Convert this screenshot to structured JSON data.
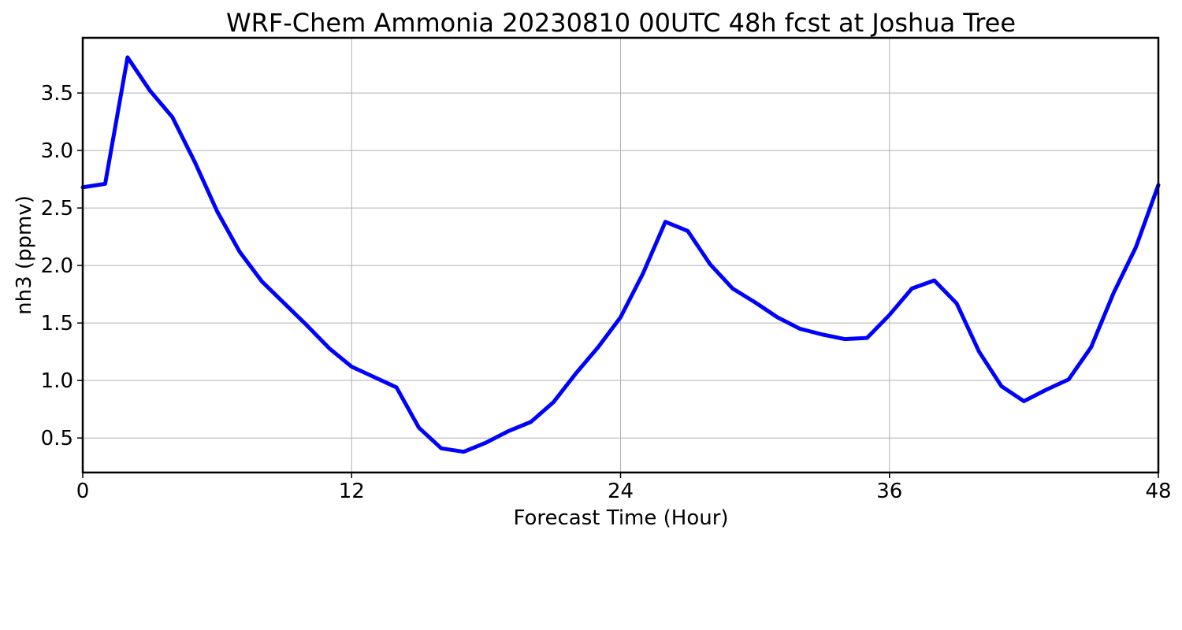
{
  "chart_data": {
    "type": "line",
    "title": "WRF-Chem Ammonia  20230810 00UTC 48h fcst at Joshua Tree",
    "xlabel": "Forecast Time (Hour)",
    "ylabel": "nh3  (ppmv)",
    "xlim": [
      0,
      48
    ],
    "ylim": [
      0.2,
      3.98
    ],
    "x_ticks": [
      0,
      12,
      24,
      36,
      48
    ],
    "x_tick_labels": [
      "0",
      "12",
      "24",
      "36",
      "48"
    ],
    "y_ticks": [
      0.5,
      1.0,
      1.5,
      2.0,
      2.5,
      3.0,
      3.5
    ],
    "y_tick_labels": [
      "0.5",
      "1.0",
      "1.5",
      "2.0",
      "2.5",
      "3.0",
      "3.5"
    ],
    "grid": true,
    "line_color": "#0000ff",
    "x": [
      0,
      1,
      2,
      3,
      4,
      5,
      6,
      7,
      8,
      9,
      10,
      11,
      12,
      13,
      14,
      15,
      16,
      17,
      18,
      19,
      20,
      21,
      22,
      23,
      24,
      25,
      26,
      27,
      28,
      29,
      30,
      31,
      32,
      33,
      34,
      35,
      36,
      37,
      38,
      39,
      40,
      41,
      42,
      43,
      44,
      45,
      46,
      47,
      48
    ],
    "values": [
      2.68,
      2.71,
      3.81,
      3.52,
      3.29,
      2.9,
      2.47,
      2.12,
      1.86,
      1.67,
      1.48,
      1.28,
      1.12,
      1.03,
      0.94,
      0.59,
      0.41,
      0.38,
      0.46,
      0.56,
      0.64,
      0.81,
      1.06,
      1.29,
      1.55,
      1.93,
      2.38,
      2.3,
      2.01,
      1.8,
      1.68,
      1.55,
      1.45,
      1.4,
      1.36,
      1.37,
      1.57,
      1.8,
      1.87,
      1.67,
      1.25,
      0.95,
      0.82,
      0.92,
      1.01,
      1.29,
      1.76,
      2.16,
      2.7
    ]
  }
}
